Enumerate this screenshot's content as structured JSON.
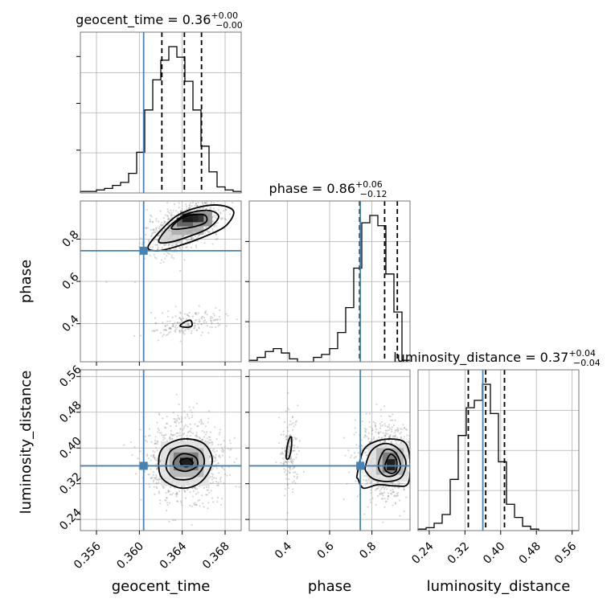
{
  "chart_data": {
    "type": "corner",
    "parameters": [
      {
        "name": "geocent_time",
        "label": "geocent_time",
        "range": [
          0.3545,
          0.3695
        ],
        "ticks": [
          0.356,
          0.36,
          0.364,
          0.368
        ],
        "tick_labels": [
          "0.356",
          "0.360",
          "0.364",
          "0.368"
        ],
        "truth": 0.3604,
        "title": "geocent_time = 0.36",
        "title_sup": "+0.00",
        "title_sub": "−0.00",
        "quantiles": [
          0.3621,
          0.3642,
          0.3658
        ],
        "hist": [
          1,
          1,
          2,
          3,
          5,
          7,
          13,
          27,
          55,
          75,
          88,
          97,
          90,
          74,
          55,
          31,
          14,
          4,
          2,
          1
        ]
      },
      {
        "name": "phase",
        "label": "phase",
        "range": [
          0.22,
          0.98
        ],
        "ticks": [
          0.4,
          0.6,
          0.8
        ],
        "tick_labels": [
          "0.4",
          "0.6",
          "0.8"
        ],
        "truth": 0.745,
        "title": "phase = 0.86",
        "title_sup": "+0.06",
        "title_sub": "−0.12",
        "quantiles": [
          0.742,
          0.86,
          0.92
        ],
        "hist": [
          1,
          3,
          7,
          9,
          6,
          2,
          0,
          0,
          3,
          5,
          9,
          20,
          37,
          64,
          95,
          100,
          93,
          60,
          34,
          1
        ]
      },
      {
        "name": "luminosity_distance",
        "label": "luminosity_distance",
        "range": [
          0.215,
          0.575
        ],
        "ticks": [
          0.24,
          0.32,
          0.4,
          0.48,
          0.56
        ],
        "tick_labels": [
          "0.24",
          "0.32",
          "0.40",
          "0.48",
          "0.56"
        ],
        "truth": 0.36,
        "title": "luminosity_distance = 0.37",
        "title_sup": "+0.04",
        "title_sub": "−0.04",
        "quantiles": [
          0.3275,
          0.3665,
          0.4085
        ],
        "hist": [
          1,
          2,
          5,
          11,
          35,
          65,
          84,
          89,
          100,
          80,
          47,
          18,
          9,
          3,
          1,
          0,
          0,
          0,
          0,
          0
        ]
      }
    ],
    "truth_color": "#4682b4",
    "grid": true,
    "scatter_clusters": {
      "phase_vs_geocent_time": [
        {
          "x": 0.3642,
          "y": 0.86,
          "sx": 0.0017,
          "sy": 0.06,
          "corr": 0.55,
          "n": 900
        },
        {
          "x": 0.3645,
          "y": 0.4,
          "sx": 0.0017,
          "sy": 0.03,
          "corr": 0.3,
          "n": 180
        }
      ],
      "luminosity_distance_vs_geocent_time": [
        {
          "x": 0.3643,
          "y": 0.37,
          "sx": 0.0018,
          "sy": 0.045,
          "corr": 0.0,
          "n": 1000
        }
      ],
      "luminosity_distance_vs_phase": [
        {
          "x": 0.86,
          "y": 0.37,
          "sx": 0.065,
          "sy": 0.045,
          "corr": 0.0,
          "n": 800
        },
        {
          "x": 0.41,
          "y": 0.39,
          "sx": 0.02,
          "sy": 0.045,
          "corr": 0.0,
          "n": 160
        }
      ]
    },
    "contours": {
      "phase_vs_geocent_time": [
        [
          [
            0.3608,
            0.76
          ],
          [
            0.3618,
            0.83
          ],
          [
            0.3635,
            0.91
          ],
          [
            0.3655,
            0.95
          ],
          [
            0.3675,
            0.96
          ],
          [
            0.3688,
            0.93
          ],
          [
            0.368,
            0.86
          ],
          [
            0.366,
            0.81
          ],
          [
            0.3638,
            0.77
          ],
          [
            0.3618,
            0.745
          ]
        ],
        [
          [
            0.3618,
            0.79
          ],
          [
            0.3628,
            0.86
          ],
          [
            0.3645,
            0.92
          ],
          [
            0.3665,
            0.935
          ],
          [
            0.3674,
            0.905
          ],
          [
            0.3664,
            0.85
          ],
          [
            0.3645,
            0.81
          ],
          [
            0.3628,
            0.785
          ]
        ],
        [
          [
            0.363,
            0.85
          ],
          [
            0.3642,
            0.905
          ],
          [
            0.366,
            0.915
          ],
          [
            0.3662,
            0.88
          ],
          [
            0.3648,
            0.855
          ]
        ],
        [
          [
            0.3638,
            0.39
          ],
          [
            0.3643,
            0.41
          ],
          [
            0.3648,
            0.415
          ],
          [
            0.3649,
            0.39
          ],
          [
            0.3644,
            0.383
          ]
        ]
      ],
      "luminosity_distance_vs_geocent_time": [
        [
          [
            0.3618,
            0.365
          ],
          [
            0.3622,
            0.4
          ],
          [
            0.364,
            0.42
          ],
          [
            0.366,
            0.41
          ],
          [
            0.3668,
            0.37
          ],
          [
            0.3658,
            0.325
          ],
          [
            0.364,
            0.31
          ],
          [
            0.3622,
            0.33
          ]
        ],
        [
          [
            0.3625,
            0.365
          ],
          [
            0.363,
            0.395
          ],
          [
            0.3645,
            0.405
          ],
          [
            0.3658,
            0.39
          ],
          [
            0.366,
            0.36
          ],
          [
            0.365,
            0.333
          ],
          [
            0.3635,
            0.33
          ],
          [
            0.3627,
            0.345
          ]
        ],
        [
          [
            0.3632,
            0.37
          ],
          [
            0.364,
            0.387
          ],
          [
            0.3652,
            0.38
          ],
          [
            0.3654,
            0.36
          ],
          [
            0.3644,
            0.348
          ],
          [
            0.3634,
            0.354
          ]
        ],
        [
          [
            0.3638,
            0.37
          ],
          [
            0.3645,
            0.377
          ],
          [
            0.365,
            0.366
          ],
          [
            0.3643,
            0.358
          ]
        ]
      ],
      "luminosity_distance_vs_phase": [
        [
          [
            0.73,
            0.34
          ],
          [
            0.76,
            0.395
          ],
          [
            0.82,
            0.415
          ],
          [
            0.9,
            0.42
          ],
          [
            0.96,
            0.41
          ],
          [
            0.98,
            0.37
          ],
          [
            0.97,
            0.32
          ],
          [
            0.91,
            0.315
          ],
          [
            0.83,
            0.318
          ],
          [
            0.76,
            0.31
          ],
          [
            0.735,
            0.33
          ]
        ],
        [
          [
            0.77,
            0.36
          ],
          [
            0.8,
            0.395
          ],
          [
            0.86,
            0.41
          ],
          [
            0.92,
            0.4
          ],
          [
            0.96,
            0.37
          ],
          [
            0.94,
            0.335
          ],
          [
            0.88,
            0.325
          ],
          [
            0.81,
            0.33
          ],
          [
            0.775,
            0.345
          ]
        ],
        [
          [
            0.83,
            0.36
          ],
          [
            0.86,
            0.395
          ],
          [
            0.91,
            0.39
          ],
          [
            0.935,
            0.36
          ],
          [
            0.91,
            0.34
          ],
          [
            0.86,
            0.338
          ]
        ],
        [
          [
            0.86,
            0.355
          ],
          [
            0.885,
            0.385
          ],
          [
            0.915,
            0.375
          ],
          [
            0.915,
            0.35
          ],
          [
            0.89,
            0.343
          ]
        ],
        [
          [
            0.395,
            0.385
          ],
          [
            0.405,
            0.415
          ],
          [
            0.418,
            0.425
          ],
          [
            0.42,
            0.405
          ],
          [
            0.41,
            0.38
          ],
          [
            0.398,
            0.375
          ]
        ]
      ]
    },
    "density_cells": {
      "phase_vs_geocent_time": [
        {
          "x": [
            0.362,
            0.364
          ],
          "y": [
            0.78,
            0.84
          ],
          "v": 0.18
        },
        {
          "x": [
            0.363,
            0.366
          ],
          "y": [
            0.82,
            0.88
          ],
          "v": 0.32
        },
        {
          "x": [
            0.3638,
            0.3668
          ],
          "y": [
            0.86,
            0.93
          ],
          "v": 0.45
        },
        {
          "x": [
            0.3635,
            0.365
          ],
          "y": [
            0.86,
            0.9
          ],
          "v": 0.65
        },
        {
          "x": [
            0.364,
            0.3655
          ],
          "y": [
            0.88,
            0.92
          ],
          "v": 0.95
        },
        {
          "x": [
            0.365,
            0.366
          ],
          "y": [
            0.88,
            0.92
          ],
          "v": 0.85
        }
      ],
      "luminosity_distance_vs_geocent_time": [
        {
          "x": [
            0.362,
            0.3665
          ],
          "y": [
            0.315,
            0.415
          ],
          "v": 0.12
        },
        {
          "x": [
            0.3628,
            0.366
          ],
          "y": [
            0.335,
            0.4
          ],
          "v": 0.3
        },
        {
          "x": [
            0.3632,
            0.3655
          ],
          "y": [
            0.35,
            0.39
          ],
          "v": 0.55
        },
        {
          "x": [
            0.3638,
            0.365
          ],
          "y": [
            0.358,
            0.378
          ],
          "v": 0.95
        }
      ],
      "luminosity_distance_vs_phase": [
        {
          "x": [
            0.78,
            0.97
          ],
          "y": [
            0.325,
            0.41
          ],
          "v": 0.12
        },
        {
          "x": [
            0.82,
            0.95
          ],
          "y": [
            0.34,
            0.4
          ],
          "v": 0.3
        },
        {
          "x": [
            0.85,
            0.92
          ],
          "y": [
            0.345,
            0.39
          ],
          "v": 0.55
        },
        {
          "x": [
            0.87,
            0.91
          ],
          "y": [
            0.35,
            0.375
          ],
          "v": 0.95
        }
      ]
    }
  }
}
